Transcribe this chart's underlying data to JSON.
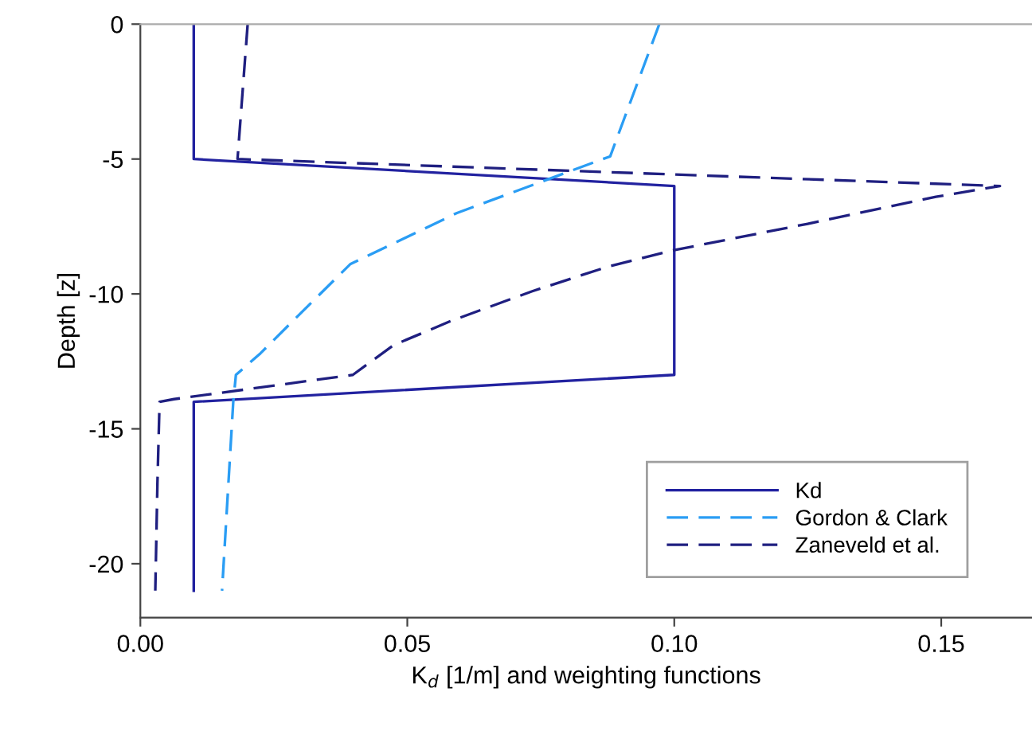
{
  "chart_data": {
    "type": "line",
    "xlabel": "K$_{d}$ [1/m] and weighting functions",
    "ylabel": "Depth [z]",
    "xlim": [
      0,
      0.167
    ],
    "ylim": [
      -22,
      0
    ],
    "xticks": [
      {
        "value": 0,
        "label": "0.00"
      },
      0.05,
      {
        "value": 0.1,
        "label": "0.10"
      },
      0.15
    ],
    "yticks": [
      -20,
      -15,
      -10,
      -5,
      0
    ],
    "grid": false,
    "legend": "bottom right",
    "marker": "none",
    "series": [
      {
        "name": "Kd",
        "color": "#2222a0",
        "line_style": "solid",
        "x": [
          0.01,
          0.01,
          0.1,
          0.1,
          0.01,
          0.01
        ],
        "values": [
          0,
          -5,
          -6,
          -13,
          -14,
          -21
        ]
      },
      {
        "name": "Gordon & Clark",
        "color": "#2a9df4",
        "line_style": "dashed",
        "x": [
          0.0972,
          0.088,
          0.0593,
          0.0393,
          0.0301,
          0.0225,
          0.0179,
          0.0174,
          0.0153
        ],
        "values": [
          0,
          -4.9,
          -7.0,
          -8.9,
          -10.7,
          -12.2,
          -13.0,
          -14,
          -21
        ]
      },
      {
        "name": "Zaneveld et al.",
        "color": "#1f1f80",
        "line_style": "dashed",
        "x": [
          0.0201,
          0.0182,
          0.161,
          0.149,
          0.125,
          0.0994,
          0.0874,
          0.0734,
          0.0582,
          0.0474,
          0.0398,
          0.0063,
          0.0036,
          0.0032,
          0.0028
        ],
        "values": [
          0,
          -5,
          -6,
          -6.4,
          -7.4,
          -8.4,
          -9.0,
          -9.9,
          -11.0,
          -11.9,
          -13.0,
          -13.9,
          -14,
          -17,
          -21
        ]
      }
    ]
  }
}
